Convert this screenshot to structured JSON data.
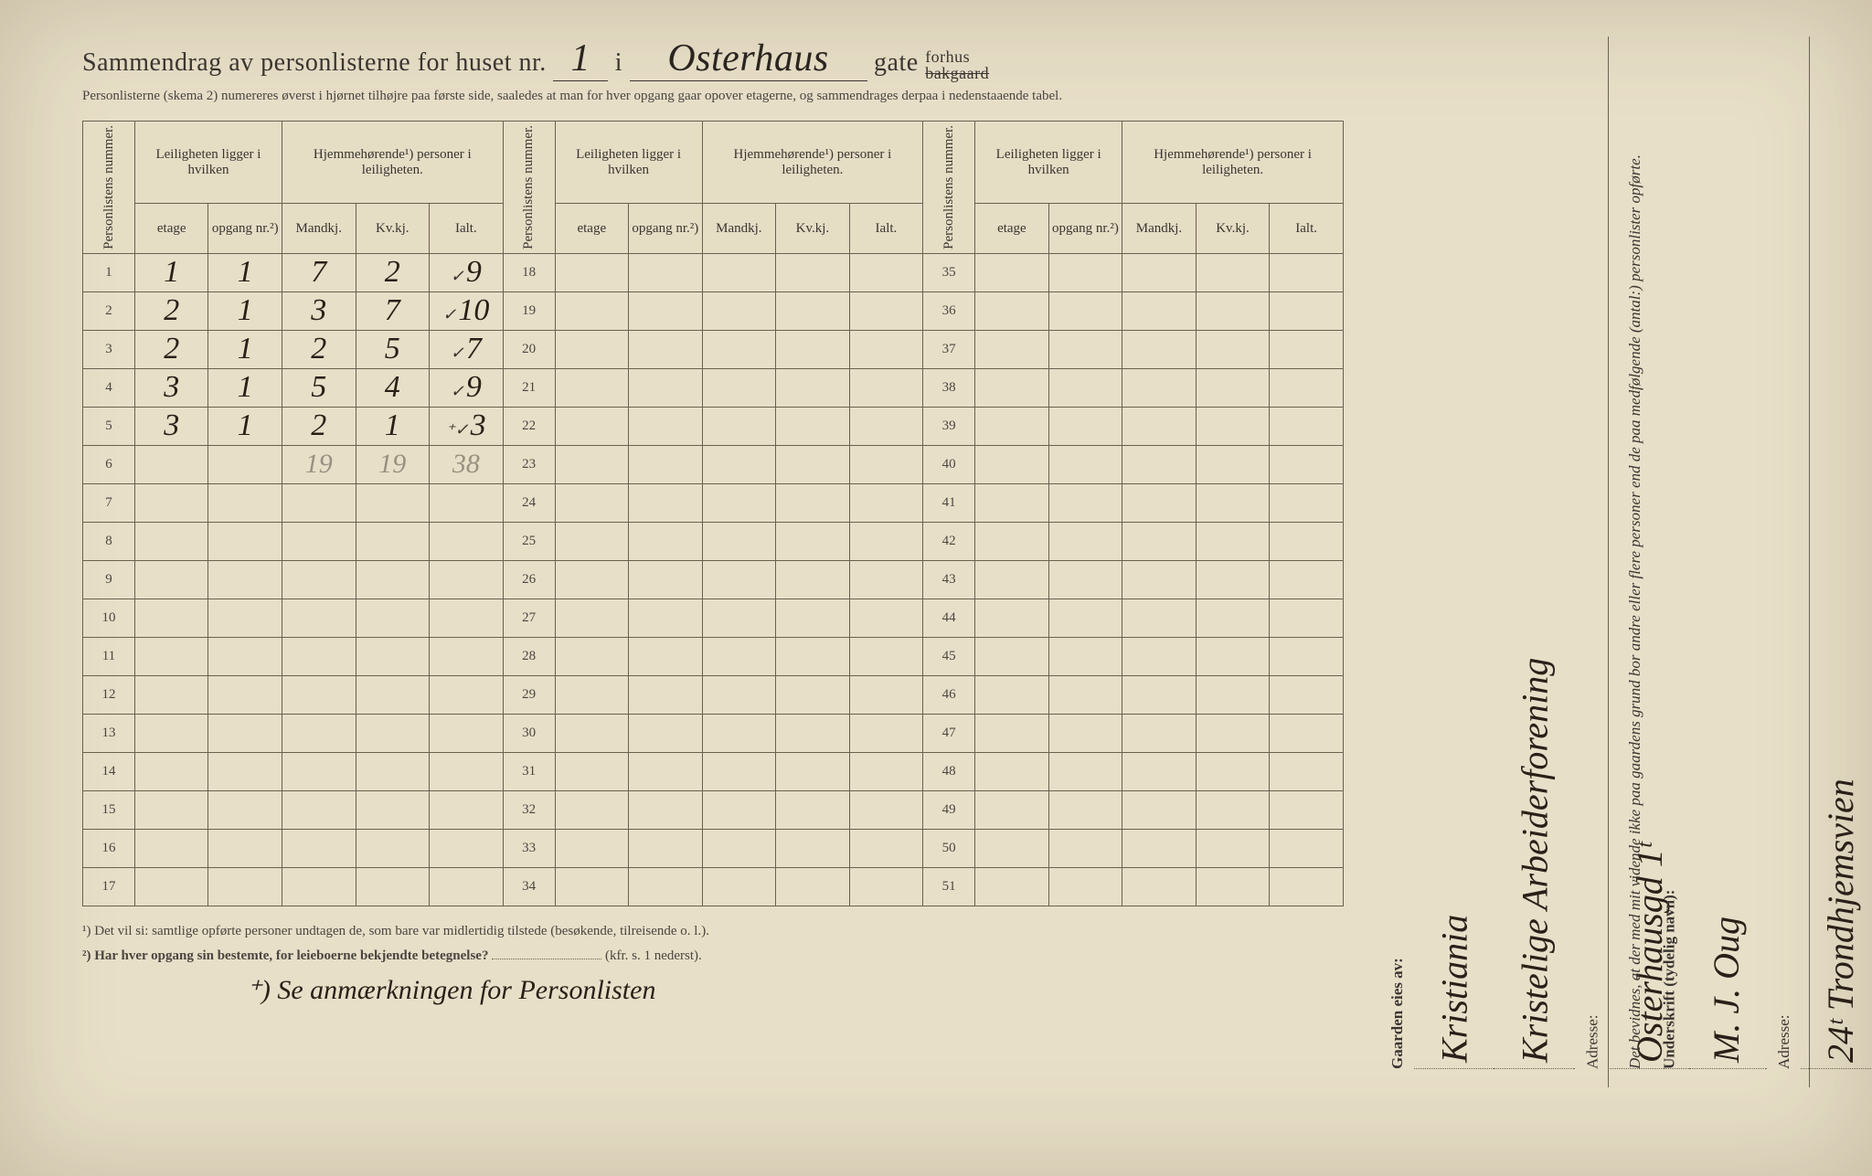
{
  "title": {
    "prefix": "Sammendrag av personlisterne for huset nr.",
    "house_nr": "1",
    "mid": "i",
    "street": "Osterhaus",
    "suffix": "gate",
    "forhus": "forhus",
    "bakgaard": "bakgaard"
  },
  "subtitle": "Personlisterne (skema 2) numereres øverst i hjørnet tilhøjre paa første side, saaledes at man for hver opgang gaar opover etagerne, og sammendrages derpaa i nedenstaaende tabel.",
  "headers": {
    "personlistens": "Personlistens nummer.",
    "leiligheten": "Leiligheten ligger i hvilken",
    "hjemme": "Hjemmehørende¹) personer i leiligheten.",
    "etage": "etage",
    "opgang": "opgang nr.²)",
    "mandkj": "Mandkj.",
    "kvkj": "Kv.kj.",
    "ialt": "Ialt."
  },
  "rows1": [
    {
      "n": "1",
      "etage": "1",
      "opg": "1",
      "m": "7",
      "k": "2",
      "i": "9",
      "chk": "✓"
    },
    {
      "n": "2",
      "etage": "2",
      "opg": "1",
      "m": "3",
      "k": "7",
      "i": "10",
      "chk": "✓"
    },
    {
      "n": "3",
      "etage": "2",
      "opg": "1",
      "m": "2",
      "k": "5",
      "i": "7",
      "chk": "✓"
    },
    {
      "n": "4",
      "etage": "3",
      "opg": "1",
      "m": "5",
      "k": "4",
      "i": "9",
      "chk": "✓"
    },
    {
      "n": "5",
      "etage": "3",
      "opg": "1",
      "m": "2",
      "k": "1",
      "i": "3",
      "chk": "⁺✓"
    },
    {
      "n": "6",
      "etage": "",
      "opg": "",
      "m": "19",
      "k": "19",
      "i": "38",
      "pencil": true
    },
    {
      "n": "7"
    },
    {
      "n": "8"
    },
    {
      "n": "9"
    },
    {
      "n": "10"
    },
    {
      "n": "11"
    },
    {
      "n": "12"
    },
    {
      "n": "13"
    },
    {
      "n": "14"
    },
    {
      "n": "15"
    },
    {
      "n": "16"
    },
    {
      "n": "17"
    }
  ],
  "rows2": [
    {
      "n": "18"
    },
    {
      "n": "19"
    },
    {
      "n": "20"
    },
    {
      "n": "21"
    },
    {
      "n": "22"
    },
    {
      "n": "23"
    },
    {
      "n": "24"
    },
    {
      "n": "25"
    },
    {
      "n": "26"
    },
    {
      "n": "27"
    },
    {
      "n": "28"
    },
    {
      "n": "29"
    },
    {
      "n": "30"
    },
    {
      "n": "31"
    },
    {
      "n": "32"
    },
    {
      "n": "33"
    },
    {
      "n": "34"
    }
  ],
  "rows3": [
    {
      "n": "35"
    },
    {
      "n": "36"
    },
    {
      "n": "37"
    },
    {
      "n": "38"
    },
    {
      "n": "39"
    },
    {
      "n": "40"
    },
    {
      "n": "41"
    },
    {
      "n": "42"
    },
    {
      "n": "43"
    },
    {
      "n": "44"
    },
    {
      "n": "45"
    },
    {
      "n": "46"
    },
    {
      "n": "47"
    },
    {
      "n": "48"
    },
    {
      "n": "49"
    },
    {
      "n": "50"
    },
    {
      "n": "51"
    }
  ],
  "footnote1": "¹) Det vil si: samtlige opførte personer undtagen de, som bare var midlertidig tilstede (besøkende, tilreisende o. l.).",
  "footnote2": "²) Har hver opgang sin bestemte, for leieboerne bekjendte betegnelse?",
  "footnote2_tail": "(kfr. s. 1 nederst).",
  "hand_footnote": "⁺) Se anmærkningen for Personlisten",
  "right_top": {
    "declaration": "Det bevidnes, at der med mit vidende ikke paa gaardens grund bor andre eller flere personer end de paa medfølgende (antal:) personlister opførte.",
    "underskrift_label": "Underskrift (tydelig navn):",
    "signature": "M. J. Oug",
    "adresse_label": "Adresse:",
    "adresse": "24ᵗ Trondhjemsvien"
  },
  "right_bottom": {
    "gaarden_label": "Gaarden eies av:",
    "owner1": "Kristiania",
    "owner2": "Kristelige Arbeiderforening",
    "adresse_label": "Adresse:",
    "adresse": "Osterhausgd 1ᵗ"
  },
  "colors": {
    "paper": "#e8dfc8",
    "ink": "#3a3530",
    "hand_ink": "#2a2018",
    "pencil": "#9a9080",
    "rule": "#6a6050"
  }
}
